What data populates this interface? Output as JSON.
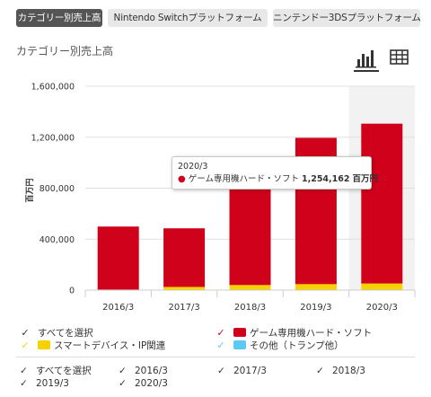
{
  "tabs": [
    {
      "label": "カテゴリー別売上高",
      "active": true
    },
    {
      "label": "Nintendo Switchプラットフォーム",
      "active": false
    },
    {
      "label": "ニンテンドー3DSプラットフォーム",
      "active": false
    }
  ],
  "section_title": "カテゴリー別売上高",
  "view_icons": {
    "chart": "bar-chart-icon",
    "table": "table-icon"
  },
  "chart_data": {
    "type": "bar",
    "stacked": true,
    "categories": [
      "2016/3",
      "2017/3",
      "2018/3",
      "2019/3",
      "2020/3"
    ],
    "series": [
      {
        "name": "スマートデバイス・IP関連",
        "color": "#f5d200",
        "values": [
          4000,
          25000,
          40000,
          47000,
          52000
        ]
      },
      {
        "name": "ゲーム専用機ハード・ソフト",
        "color": "#d0021b",
        "values": [
          495000,
          460000,
          1010000,
          1148000,
          1254162
        ]
      }
    ],
    "ylabel": "百万円",
    "ylim": [
      0,
      1600000
    ],
    "yticks": [
      "0",
      "400,000",
      "800,000",
      "1,200,000",
      "1,600,000"
    ],
    "yticks_values": [
      0,
      400000,
      800000,
      1200000,
      1600000
    ],
    "highlight_index": 4
  },
  "tooltip": {
    "period": "2020/3",
    "series": "ゲーム専用機ハード・ソフト",
    "value": "1,254,162",
    "unit": "百万円"
  },
  "legend": {
    "select_all": "すべてを選択",
    "items": [
      {
        "label": "ゲーム専用機ハード・ソフト",
        "color": "#d0021b",
        "checked_color": "#d0021b"
      },
      {
        "label": "スマートデバイス・IP関連",
        "color": "#f5d200",
        "checked_color": "#f5d200"
      },
      {
        "label": "その他（トランプ他）",
        "color": "#5bc8f5",
        "checked_color": "#5bc8f5"
      }
    ]
  },
  "year_filter": {
    "select_all": "すべてを選択",
    "years": [
      "2016/3",
      "2017/3",
      "2018/3",
      "2019/3",
      "2020/3"
    ]
  }
}
